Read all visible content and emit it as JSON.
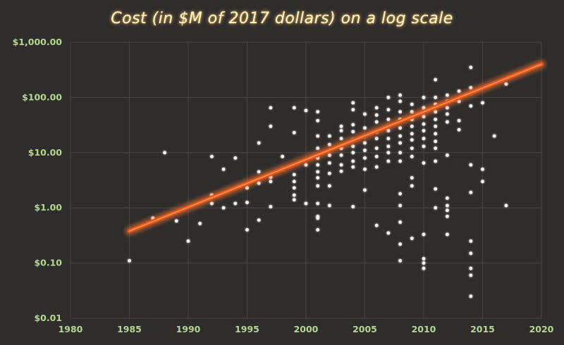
{
  "chart_data": {
    "type": "scatter",
    "title": "Cost (in $M of 2017 dollars) on a log scale",
    "xlabel": "",
    "ylabel": "",
    "xlim": [
      1980,
      2020
    ],
    "ylim": [
      0.01,
      1000
    ],
    "y_scale": "log",
    "grid": true,
    "x_ticks": [
      "1980",
      "1985",
      "1990",
      "1995",
      "2000",
      "2005",
      "2010",
      "2015",
      "2020"
    ],
    "y_ticks": [
      "$0.01",
      "$0.10",
      "$1.00",
      "$10.00",
      "$100.00",
      "$1,000.00"
    ],
    "points": [
      [
        1985,
        0.11
      ],
      [
        1987,
        0.65
      ],
      [
        1988,
        10
      ],
      [
        1989,
        0.58
      ],
      [
        1990,
        0.25
      ],
      [
        1991,
        0.52
      ],
      [
        1992,
        1.7
      ],
      [
        1992,
        1.2
      ],
      [
        1992,
        8.5
      ],
      [
        1993,
        1.0
      ],
      [
        1993,
        5.0
      ],
      [
        1994,
        1.2
      ],
      [
        1994,
        8.0
      ],
      [
        1995,
        2.3
      ],
      [
        1995,
        1.25
      ],
      [
        1995,
        0.4
      ],
      [
        1996,
        15
      ],
      [
        1996,
        4.5
      ],
      [
        1996,
        2.8
      ],
      [
        1996,
        0.6
      ],
      [
        1997,
        65
      ],
      [
        1997,
        30
      ],
      [
        1997,
        3.6
      ],
      [
        1997,
        3.0
      ],
      [
        1997,
        1.05
      ],
      [
        1998,
        8.5
      ],
      [
        1998,
        5.0
      ],
      [
        1999,
        65
      ],
      [
        1999,
        23
      ],
      [
        1999,
        4.0
      ],
      [
        1999,
        3.0
      ],
      [
        1999,
        2.3
      ],
      [
        1999,
        1.7
      ],
      [
        1999,
        1.4
      ],
      [
        2000,
        58
      ],
      [
        2000,
        6.0
      ],
      [
        2000,
        1.2
      ],
      [
        2001,
        55
      ],
      [
        2001,
        38
      ],
      [
        2001,
        20
      ],
      [
        2001,
        12
      ],
      [
        2001,
        8
      ],
      [
        2001,
        6
      ],
      [
        2001,
        4.5
      ],
      [
        2001,
        3.5
      ],
      [
        2001,
        2.5
      ],
      [
        2001,
        1.2
      ],
      [
        2001,
        0.7
      ],
      [
        2001,
        0.65
      ],
      [
        2001,
        0.4
      ],
      [
        2002,
        20
      ],
      [
        2002,
        14
      ],
      [
        2002,
        9
      ],
      [
        2002,
        6.5
      ],
      [
        2002,
        4.2
      ],
      [
        2002,
        2.5
      ],
      [
        2002,
        1.1
      ],
      [
        2003,
        30
      ],
      [
        2003,
        25
      ],
      [
        2003,
        18
      ],
      [
        2003,
        12
      ],
      [
        2003,
        9
      ],
      [
        2003,
        6
      ],
      [
        2003,
        4.6
      ],
      [
        2004,
        80
      ],
      [
        2004,
        60
      ],
      [
        2004,
        32
      ],
      [
        2004,
        24
      ],
      [
        2004,
        17
      ],
      [
        2004,
        13
      ],
      [
        2004,
        10
      ],
      [
        2004,
        7
      ],
      [
        2004,
        5.5
      ],
      [
        2004,
        1.05
      ],
      [
        2005,
        50
      ],
      [
        2005,
        28
      ],
      [
        2005,
        20
      ],
      [
        2005,
        15
      ],
      [
        2005,
        11
      ],
      [
        2005,
        8
      ],
      [
        2005,
        5.0
      ],
      [
        2005,
        2.1
      ],
      [
        2006,
        65
      ],
      [
        2006,
        48
      ],
      [
        2006,
        36
      ],
      [
        2006,
        24
      ],
      [
        2006,
        18
      ],
      [
        2006,
        12
      ],
      [
        2006,
        8.5
      ],
      [
        2006,
        5.5
      ],
      [
        2006,
        0.48
      ],
      [
        2007,
        100
      ],
      [
        2007,
        60
      ],
      [
        2007,
        40
      ],
      [
        2007,
        30
      ],
      [
        2007,
        25
      ],
      [
        2007,
        18
      ],
      [
        2007,
        13
      ],
      [
        2007,
        10
      ],
      [
        2007,
        7
      ],
      [
        2007,
        0.35
      ],
      [
        2008,
        110
      ],
      [
        2008,
        85
      ],
      [
        2008,
        55
      ],
      [
        2008,
        40
      ],
      [
        2008,
        28
      ],
      [
        2008,
        20
      ],
      [
        2008,
        15
      ],
      [
        2008,
        10
      ],
      [
        2008,
        7
      ],
      [
        2008,
        1.8
      ],
      [
        2008,
        1.1
      ],
      [
        2008,
        0.55
      ],
      [
        2008,
        0.22
      ],
      [
        2008,
        0.11
      ],
      [
        2009,
        75
      ],
      [
        2009,
        55
      ],
      [
        2009,
        40
      ],
      [
        2009,
        30
      ],
      [
        2009,
        22
      ],
      [
        2009,
        17
      ],
      [
        2009,
        12
      ],
      [
        2009,
        8.5
      ],
      [
        2009,
        3.5
      ],
      [
        2009,
        2.5
      ],
      [
        2009,
        0.28
      ],
      [
        2010,
        100
      ],
      [
        2010,
        65
      ],
      [
        2010,
        45
      ],
      [
        2010,
        33
      ],
      [
        2010,
        25
      ],
      [
        2010,
        18
      ],
      [
        2010,
        13
      ],
      [
        2010,
        6.5
      ],
      [
        2010,
        0.33
      ],
      [
        2010,
        0.12
      ],
      [
        2010,
        0.1
      ],
      [
        2010,
        0.08
      ],
      [
        2011,
        210
      ],
      [
        2011,
        100
      ],
      [
        2011,
        75
      ],
      [
        2011,
        55
      ],
      [
        2011,
        40
      ],
      [
        2011,
        30
      ],
      [
        2011,
        22
      ],
      [
        2011,
        16
      ],
      [
        2011,
        12
      ],
      [
        2011,
        7
      ],
      [
        2011,
        2.2
      ],
      [
        2011,
        1.0
      ],
      [
        2012,
        110
      ],
      [
        2012,
        85
      ],
      [
        2012,
        65
      ],
      [
        2012,
        50
      ],
      [
        2012,
        36
      ],
      [
        2012,
        9
      ],
      [
        2012,
        1.5
      ],
      [
        2012,
        1.1
      ],
      [
        2012,
        0.9
      ],
      [
        2012,
        0.7
      ],
      [
        2012,
        0.33
      ],
      [
        2013,
        130
      ],
      [
        2013,
        85
      ],
      [
        2013,
        38
      ],
      [
        2013,
        26
      ],
      [
        2014,
        350
      ],
      [
        2014,
        150
      ],
      [
        2014,
        120
      ],
      [
        2014,
        70
      ],
      [
        2014,
        6
      ],
      [
        2014,
        1.9
      ],
      [
        2014,
        0.25
      ],
      [
        2014,
        0.15
      ],
      [
        2014,
        0.08
      ],
      [
        2014,
        0.06
      ],
      [
        2014,
        0.025
      ],
      [
        2015,
        80
      ],
      [
        2015,
        5.0
      ],
      [
        2015,
        3.0
      ],
      [
        2016,
        20
      ],
      [
        2017,
        175
      ],
      [
        2017,
        1.1
      ]
    ],
    "trendline": {
      "x": [
        1985,
        2020
      ],
      "y": [
        0.38,
        400
      ],
      "color": "#e0521a"
    },
    "colors": {
      "point": "#f4f4f4",
      "tick_text": "#b4d890",
      "title": "#fff6c8",
      "background": "#2f2c2c",
      "grid": "#484444"
    }
  }
}
